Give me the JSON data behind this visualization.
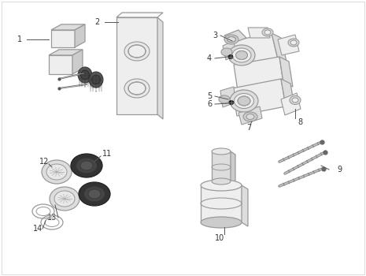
{
  "bg_color": "#ffffff",
  "line_color": "#999999",
  "dark_color": "#555555",
  "label_color": "#333333",
  "fill_light": "#eeeeee",
  "fill_mid": "#dddddd",
  "fill_dark": "#cccccc",
  "fill_darker": "#aaaaaa",
  "black_fill": "#222222"
}
